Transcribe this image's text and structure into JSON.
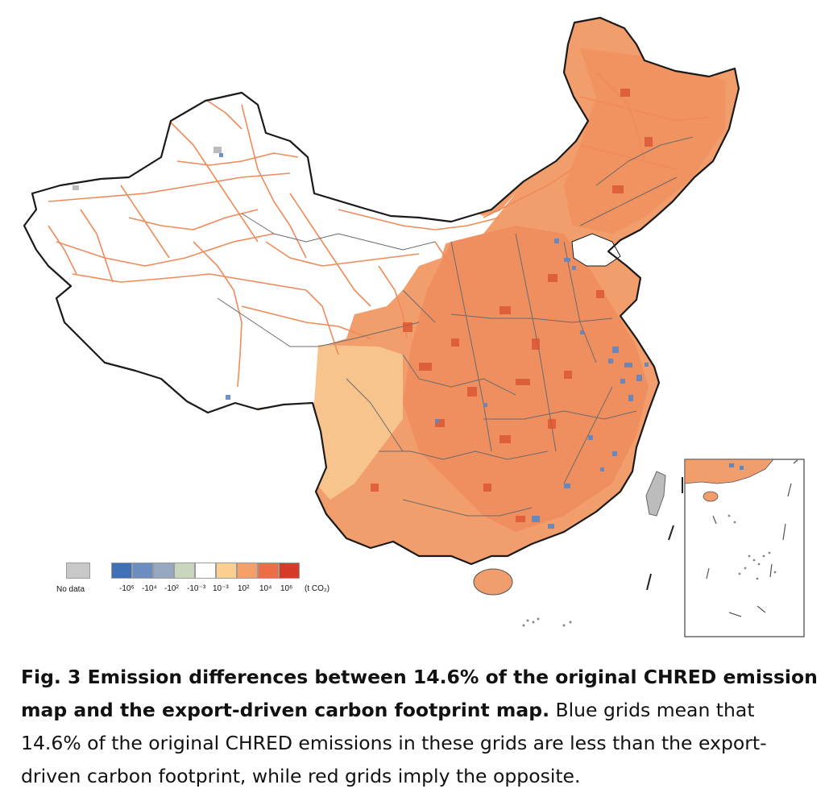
{
  "legend": {
    "no_data_label": "No data",
    "tick_labels": [
      "-10⁶",
      "-10⁴",
      "-10²",
      "-10⁻³",
      "10⁻³",
      "10²",
      "10⁴",
      "10⁶"
    ],
    "unit": "(t CO₂)",
    "colors": {
      "no_data": "#c8c8c8",
      "bins": [
        "#3f6fb5",
        "#6c8dbf",
        "#95a8c0",
        "#c9d6bd",
        "#ffffff",
        "#fbcf8f",
        "#f5a06b",
        "#ec6e47",
        "#d83a28"
      ]
    }
  },
  "map": {
    "fill_main": "#f29d6c",
    "fill_southwest": "#f7c48e",
    "border_color": "#1a1a1a",
    "province_line_color": "#6b6b6b",
    "road_color": "#f08a5a",
    "blue_cell_color": "#5e86c2",
    "no_data_color": "#bcbcbc"
  },
  "caption": {
    "lead": "Fig. 3 Emission differences between 14.6% of the original CHRED emission map and the export-driven carbon footprint map.",
    "body": " Blue grids mean that 14.6% of the original CHRED emissions in these grids are less than the export-driven carbon footprint, while red grids imply the opposite."
  }
}
